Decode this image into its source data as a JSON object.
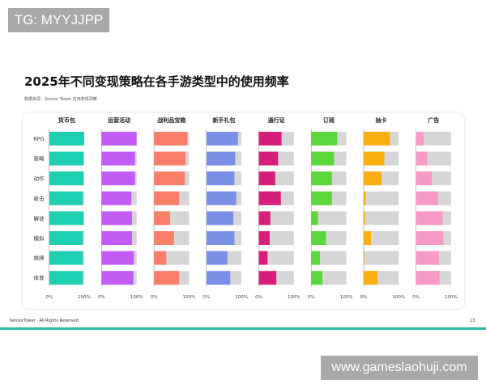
{
  "watermarks": {
    "top_left": "TG: MYYJJPP",
    "bottom_right": "www.gameslaohuji.com"
  },
  "footer": {
    "brand": "SensorTower · All Rights Reserved",
    "page_number": "13"
  },
  "chart_data": {
    "type": "bar",
    "orientation": "horizontal",
    "layout": "small-multiples",
    "title": "2025年不同变现策略在各手游类型中的使用频率",
    "subtitle": "数据来源：Sensor Tower 应用表现洞察",
    "categories": [
      "RPG",
      "策略",
      "动作",
      "射击",
      "解谜",
      "模拟",
      "棋牌",
      "体育"
    ],
    "xlim": [
      0,
      100
    ],
    "tick_labels": [
      "0%",
      "100%"
    ],
    "track_color": "#d6d6d6",
    "series": [
      {
        "name": "货币包",
        "color": "#1fcfb2",
        "values": [
          100,
          98,
          98,
          96,
          98,
          96,
          96,
          96
        ]
      },
      {
        "name": "运营活动",
        "color": "#c35cf5",
        "values": [
          100,
          95,
          95,
          85,
          87,
          87,
          92,
          91
        ]
      },
      {
        "name": "战利品宝箱",
        "color": "#fa7f6b",
        "values": [
          95,
          90,
          88,
          72,
          46,
          57,
          35,
          72
        ]
      },
      {
        "name": "新手礼包",
        "color": "#7a8fe6",
        "values": [
          90,
          82,
          80,
          85,
          77,
          80,
          60,
          68
        ]
      },
      {
        "name": "通行证",
        "color": "#d4207a",
        "values": [
          65,
          55,
          47,
          63,
          33,
          31,
          25,
          50
        ]
      },
      {
        "name": "订阅",
        "color": "#5bd63c",
        "values": [
          74,
          65,
          59,
          59,
          19,
          42,
          25,
          32
        ]
      },
      {
        "name": "抽卡",
        "color": "#fbae10",
        "values": [
          75,
          59,
          51,
          6,
          4,
          21,
          2,
          40
        ]
      },
      {
        "name": "广告",
        "color": "#f79ac7",
        "values": [
          22,
          32,
          45,
          63,
          76,
          78,
          65,
          67
        ]
      }
    ]
  }
}
